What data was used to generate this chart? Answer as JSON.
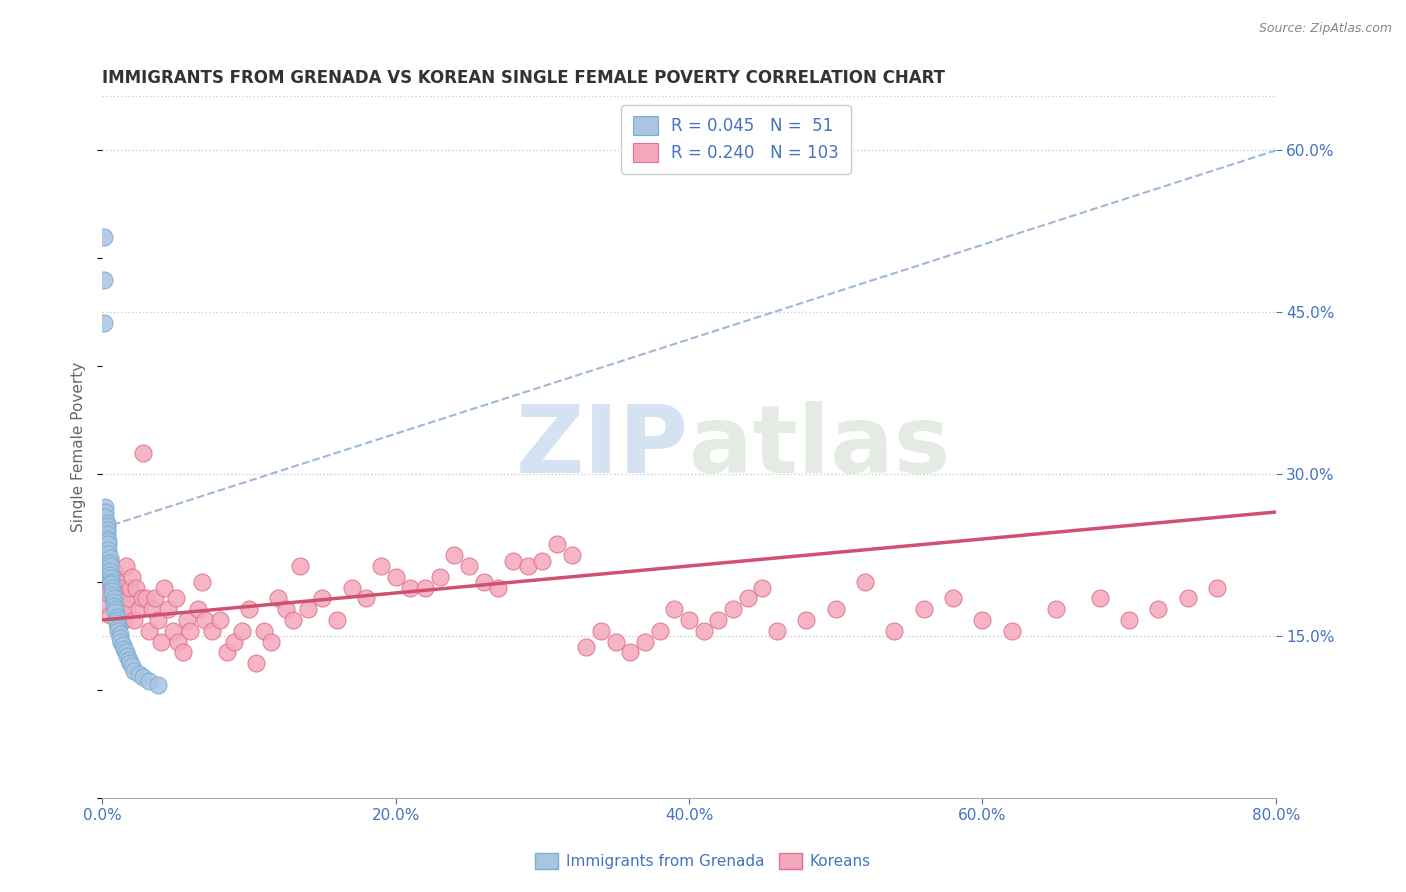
{
  "title": "IMMIGRANTS FROM GRENADA VS KOREAN SINGLE FEMALE POVERTY CORRELATION CHART",
  "source": "Source: ZipAtlas.com",
  "ylabel": "Single Female Poverty",
  "x_min": 0.0,
  "x_max": 0.8,
  "y_min": 0.0,
  "y_max": 0.65,
  "right_yticks": [
    0.15,
    0.3,
    0.45,
    0.6
  ],
  "right_yticklabels": [
    "15.0%",
    "30.0%",
    "45.0%",
    "60.0%"
  ],
  "xticks": [
    0.0,
    0.2,
    0.4,
    0.6,
    0.8
  ],
  "xticklabels": [
    "0.0%",
    "20.0%",
    "40.0%",
    "60.0%",
    "80.0%"
  ],
  "grenada_color": "#aac4e2",
  "korean_color": "#f5a8bb",
  "grenada_edge": "#7aafd0",
  "korean_edge": "#e07090",
  "trend_blue": "#a0b8d8",
  "trend_pink": "#d05070",
  "R_grenada": 0.045,
  "N_grenada": 51,
  "R_korean": 0.24,
  "N_korean": 103,
  "legend_label1": "Immigrants from Grenada",
  "legend_label2": "Koreans",
  "watermark_zip": "ZIP",
  "watermark_atlas": "atlas",
  "background_color": "#ffffff",
  "grid_color": "#cccccc",
  "title_color": "#333333",
  "axis_color": "#4472c4",
  "grenada_x": [
    0.001,
    0.001,
    0.001,
    0.002,
    0.002,
    0.002,
    0.003,
    0.003,
    0.003,
    0.003,
    0.003,
    0.004,
    0.004,
    0.004,
    0.004,
    0.005,
    0.005,
    0.005,
    0.005,
    0.005,
    0.006,
    0.006,
    0.006,
    0.007,
    0.007,
    0.007,
    0.008,
    0.008,
    0.008,
    0.009,
    0.009,
    0.01,
    0.01,
    0.01,
    0.011,
    0.011,
    0.012,
    0.012,
    0.013,
    0.014,
    0.015,
    0.016,
    0.017,
    0.018,
    0.019,
    0.02,
    0.022,
    0.025,
    0.028,
    0.032,
    0.038
  ],
  "grenada_y": [
    0.52,
    0.48,
    0.44,
    0.27,
    0.265,
    0.26,
    0.255,
    0.252,
    0.248,
    0.245,
    0.24,
    0.238,
    0.235,
    0.23,
    0.226,
    0.222,
    0.218,
    0.215,
    0.21,
    0.207,
    0.204,
    0.2,
    0.198,
    0.195,
    0.192,
    0.188,
    0.185,
    0.182,
    0.178,
    0.175,
    0.172,
    0.168,
    0.165,
    0.162,
    0.158,
    0.155,
    0.152,
    0.148,
    0.145,
    0.142,
    0.138,
    0.135,
    0.132,
    0.128,
    0.125,
    0.122,
    0.118,
    0.115,
    0.112,
    0.108,
    0.105
  ],
  "korean_x": [
    0.001,
    0.002,
    0.003,
    0.004,
    0.005,
    0.005,
    0.006,
    0.007,
    0.008,
    0.009,
    0.01,
    0.011,
    0.012,
    0.013,
    0.014,
    0.015,
    0.016,
    0.017,
    0.018,
    0.019,
    0.02,
    0.022,
    0.023,
    0.025,
    0.027,
    0.028,
    0.03,
    0.032,
    0.034,
    0.036,
    0.038,
    0.04,
    0.042,
    0.045,
    0.048,
    0.05,
    0.052,
    0.055,
    0.058,
    0.06,
    0.065,
    0.068,
    0.07,
    0.075,
    0.08,
    0.085,
    0.09,
    0.095,
    0.1,
    0.105,
    0.11,
    0.115,
    0.12,
    0.125,
    0.13,
    0.135,
    0.14,
    0.15,
    0.16,
    0.17,
    0.18,
    0.19,
    0.2,
    0.21,
    0.22,
    0.23,
    0.24,
    0.25,
    0.26,
    0.27,
    0.28,
    0.29,
    0.3,
    0.31,
    0.32,
    0.33,
    0.34,
    0.35,
    0.36,
    0.37,
    0.38,
    0.39,
    0.4,
    0.41,
    0.42,
    0.43,
    0.44,
    0.45,
    0.46,
    0.48,
    0.5,
    0.52,
    0.54,
    0.56,
    0.58,
    0.6,
    0.62,
    0.65,
    0.68,
    0.7,
    0.72,
    0.74,
    0.76
  ],
  "korean_y": [
    0.2,
    0.18,
    0.21,
    0.19,
    0.17,
    0.22,
    0.2,
    0.19,
    0.21,
    0.18,
    0.2,
    0.19,
    0.175,
    0.185,
    0.195,
    0.165,
    0.215,
    0.175,
    0.185,
    0.195,
    0.205,
    0.165,
    0.195,
    0.175,
    0.185,
    0.32,
    0.185,
    0.155,
    0.175,
    0.185,
    0.165,
    0.145,
    0.195,
    0.175,
    0.155,
    0.185,
    0.145,
    0.135,
    0.165,
    0.155,
    0.175,
    0.2,
    0.165,
    0.155,
    0.165,
    0.135,
    0.145,
    0.155,
    0.175,
    0.125,
    0.155,
    0.145,
    0.185,
    0.175,
    0.165,
    0.215,
    0.175,
    0.185,
    0.165,
    0.195,
    0.185,
    0.215,
    0.205,
    0.195,
    0.195,
    0.205,
    0.225,
    0.215,
    0.2,
    0.195,
    0.22,
    0.215,
    0.22,
    0.235,
    0.225,
    0.14,
    0.155,
    0.145,
    0.135,
    0.145,
    0.155,
    0.175,
    0.165,
    0.155,
    0.165,
    0.175,
    0.185,
    0.195,
    0.155,
    0.165,
    0.175,
    0.2,
    0.155,
    0.175,
    0.185,
    0.165,
    0.155,
    0.175,
    0.185,
    0.165,
    0.175,
    0.185,
    0.195
  ],
  "trend_grenada_x0": 0.0,
  "trend_grenada_x1": 0.8,
  "trend_grenada_y0": 0.25,
  "trend_grenada_y1": 0.6,
  "trend_korean_x0": 0.0,
  "trend_korean_x1": 0.8,
  "trend_korean_y0": 0.165,
  "trend_korean_y1": 0.265
}
